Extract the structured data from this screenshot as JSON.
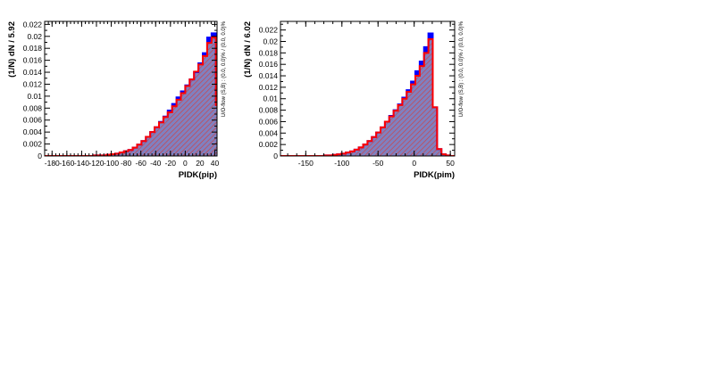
{
  "colors": {
    "signal": "#0000ff",
    "background": "#ff0000",
    "fill": "#8080c0",
    "hatch": "#d04040"
  },
  "chart_data": [
    {
      "type": "bar",
      "xlabel": "PIDK(pip)",
      "ylabel": "(1/N) dN / 5.92",
      "side_note": "U/O-flow (S,B) : (0.0, 0.0)% / (0.0, 0.0)%",
      "xlim": [
        -190,
        43
      ],
      "ylim": [
        0,
        0.0225
      ],
      "xticks": [
        -180,
        -160,
        -140,
        -120,
        -100,
        -80,
        -60,
        -40,
        -20,
        0,
        20,
        40
      ],
      "yticks": [
        0,
        0.002,
        0.004,
        0.006,
        0.008,
        0.01,
        0.012,
        0.014,
        0.016,
        0.018,
        0.02,
        0.022
      ],
      "ytick_labels": [
        "0",
        "0.002",
        "0.004",
        "0.006",
        "0.008",
        "0.01",
        "0.012",
        "0.014",
        "0.016",
        "0.018",
        "0.02",
        "0.022"
      ],
      "bin_start": -189.4,
      "bin_width": 5.92,
      "series": [
        {
          "values": [
            0,
            0,
            0,
            0,
            0,
            0,
            0,
            0,
            0,
            0,
            0,
            0.0001,
            0.0001,
            0.0001,
            0.0002,
            0.0003,
            0.0004,
            0.0006,
            0.0008,
            0.001,
            0.0014,
            0.0019,
            0.0025,
            0.0032,
            0.004,
            0.0048,
            0.0057,
            0.0066,
            0.0076,
            0.0087,
            0.0098,
            0.0108,
            0.0118,
            0.0128,
            0.014,
            0.0155,
            0.0172,
            0.0198,
            0.0205,
            0.0085,
            0.0018,
            0.0003,
            0.0001,
            0,
            0,
            0,
            0,
            0,
            0,
            0
          ]
        },
        {
          "values": [
            0,
            0,
            0,
            0,
            0,
            0,
            0,
            0,
            0,
            0,
            0,
            0.0001,
            0.0001,
            0.0001,
            0.0002,
            0.0003,
            0.0004,
            0.0006,
            0.0008,
            0.001,
            0.0014,
            0.0019,
            0.0025,
            0.0032,
            0.004,
            0.0048,
            0.0056,
            0.0065,
            0.0073,
            0.0083,
            0.0094,
            0.0105,
            0.0117,
            0.0128,
            0.0141,
            0.0153,
            0.0167,
            0.0189,
            0.0198,
            0.0085,
            0.0018,
            0.0003,
            0.0001,
            0,
            0,
            0,
            0,
            0,
            0,
            0
          ]
        }
      ]
    },
    {
      "type": "bar",
      "xlabel": "PIDK(pim)",
      "ylabel": "(1/N) dN / 6.02",
      "side_note": "U/O-flow (S,B) : (0.0, 0.0)% / (0.0, 0.0)%",
      "xlim": [
        -185,
        56
      ],
      "ylim": [
        0,
        0.0235
      ],
      "xticks": [
        -150,
        -100,
        -50,
        0,
        50
      ],
      "yticks": [
        0,
        0.002,
        0.004,
        0.006,
        0.008,
        0.01,
        0.012,
        0.014,
        0.016,
        0.018,
        0.02,
        0.022
      ],
      "ytick_labels": [
        "0",
        "0.002",
        "0.004",
        "0.006",
        "0.008",
        "0.01",
        "0.012",
        "0.014",
        "0.016",
        "0.018",
        "0.02",
        "0.022"
      ],
      "bin_start": -185,
      "bin_width": 6.02,
      "series": [
        {
          "values": [
            0,
            0,
            0,
            0,
            0,
            0,
            0,
            0,
            0,
            0,
            0.0001,
            0.0001,
            0.0002,
            0.0003,
            0.0004,
            0.0006,
            0.0008,
            0.0011,
            0.0015,
            0.002,
            0.0026,
            0.0033,
            0.0041,
            0.005,
            0.006,
            0.007,
            0.008,
            0.009,
            0.0102,
            0.0115,
            0.013,
            0.0148,
            0.0165,
            0.019,
            0.0214,
            0.0085,
            0.0012,
            0.0003,
            0.0001,
            0
          ]
        },
        {
          "values": [
            0,
            0,
            0,
            0,
            0,
            0,
            0,
            0,
            0,
            0,
            0.0001,
            0.0001,
            0.0002,
            0.0003,
            0.0004,
            0.0006,
            0.0008,
            0.0011,
            0.0015,
            0.002,
            0.0026,
            0.0033,
            0.0041,
            0.005,
            0.006,
            0.0069,
            0.0079,
            0.0089,
            0.01,
            0.0112,
            0.0125,
            0.014,
            0.0157,
            0.018,
            0.0204,
            0.0085,
            0.0012,
            0.0003,
            0.0001,
            0
          ]
        }
      ]
    }
  ]
}
